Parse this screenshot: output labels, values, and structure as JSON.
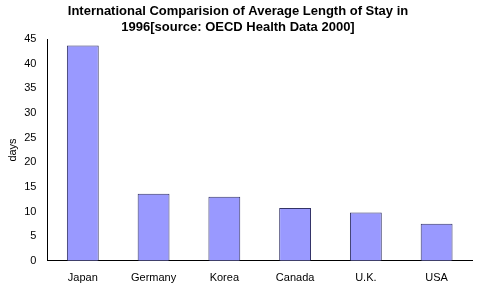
{
  "chart_data": {
    "type": "bar",
    "title": [
      "International Comparision of Average Length of Stay in",
      "1996[source: OECD Health Data 2000]"
    ],
    "y_label": "days",
    "categories": [
      "Japan",
      "Germany",
      "Korea",
      "Canada",
      "U.K.",
      "USA"
    ],
    "values": [
      43.7,
      13.6,
      13.0,
      10.7,
      9.8,
      7.5
    ],
    "color": "#9999ff",
    "ylim": [
      0,
      45
    ],
    "yticks": [
      0,
      5,
      10,
      15,
      20,
      25,
      30,
      35,
      40,
      45
    ],
    "grid": false
  }
}
